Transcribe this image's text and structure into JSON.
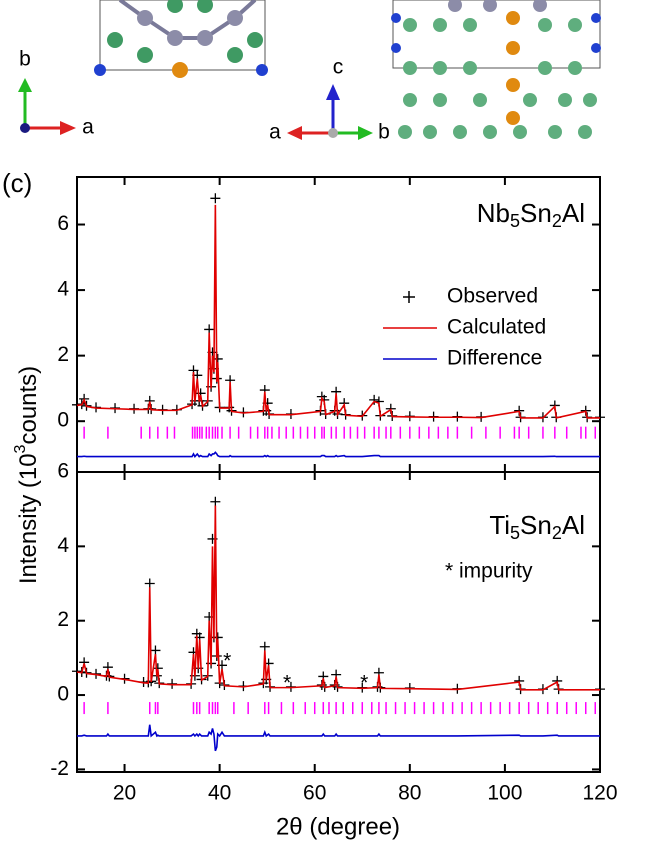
{
  "figure": {
    "panel_label": "(c)",
    "xlabel": "2θ (degree)",
    "ylabel_prefix": "Intensity (10",
    "ylabel_sup": "3",
    "ylabel_suffix": "counts)",
    "axes_left": [
      "b",
      "a"
    ],
    "axes_middle": [
      "c",
      "a",
      "b"
    ]
  },
  "chart_data": [
    {
      "type": "line",
      "xlim": [
        10,
        120
      ],
      "ylim": [
        -1.55,
        7.45
      ],
      "yticks": [
        0,
        2,
        4,
        6
      ],
      "label": [
        "Nb",
        "5",
        "Sn",
        "2",
        "Al"
      ],
      "legend": "right",
      "x": [
        10,
        11,
        11.5,
        12,
        14,
        18,
        22,
        25,
        25.3,
        25.6,
        28,
        31,
        34.2,
        34.5,
        34.8,
        35.3,
        35.7,
        36,
        36.4,
        37.5,
        37.8,
        38.2,
        38.5,
        38.8,
        39.1,
        39.4,
        39.6,
        40,
        42,
        42.2,
        42.5,
        45,
        49.2,
        49.5,
        49.8,
        50.1,
        50.4,
        55,
        61.2,
        61.5,
        62,
        62.3,
        64.2,
        64.5,
        64.8,
        66.2,
        66.5,
        70,
        72.5,
        73.5,
        73.8,
        76,
        76.3,
        80,
        85,
        90,
        95,
        103,
        103.3,
        108,
        110.5,
        110.8,
        117,
        117.3,
        120
      ],
      "series": [
        {
          "name": "Observed",
          "color": "#000000",
          "marker": "+",
          "values": [
            0.5,
            0.52,
            0.68,
            0.47,
            0.42,
            0.4,
            0.38,
            0.38,
            0.62,
            0.37,
            0.35,
            0.35,
            0.52,
            1.55,
            0.62,
            1.4,
            0.62,
            0.85,
            0.47,
            0.62,
            2.8,
            1.05,
            2.1,
            1.6,
            6.8,
            1.3,
            1.9,
            0.42,
            0.42,
            1.25,
            0.32,
            0.27,
            0.32,
            0.95,
            0.32,
            0.55,
            0.22,
            0.22,
            0.32,
            0.75,
            0.65,
            0.22,
            0.32,
            0.9,
            0.22,
            0.55,
            0.2,
            0.17,
            0.65,
            0.6,
            0.17,
            0.38,
            0.16,
            0.15,
            0.14,
            0.14,
            0.13,
            0.32,
            0.12,
            0.12,
            0.48,
            0.12,
            0.32,
            0.12,
            0.12
          ]
        },
        {
          "name": "Calculated",
          "color": "#e00000",
          "marker": "line",
          "values": [
            0.48,
            0.5,
            0.65,
            0.45,
            0.4,
            0.38,
            0.36,
            0.36,
            0.6,
            0.35,
            0.33,
            0.33,
            0.5,
            1.5,
            0.6,
            1.3,
            0.6,
            0.8,
            0.45,
            0.6,
            2.7,
            1.0,
            2.0,
            1.5,
            6.6,
            1.2,
            1.8,
            0.4,
            0.4,
            1.2,
            0.3,
            0.25,
            0.3,
            0.9,
            0.3,
            0.5,
            0.2,
            0.2,
            0.3,
            0.7,
            0.6,
            0.2,
            0.3,
            0.85,
            0.2,
            0.5,
            0.18,
            0.15,
            0.6,
            0.55,
            0.15,
            0.35,
            0.14,
            0.13,
            0.12,
            0.12,
            0.11,
            0.3,
            0.1,
            0.1,
            0.45,
            0.1,
            0.3,
            0.1,
            0.1
          ]
        },
        {
          "name": "Difference",
          "color": "#0000cc",
          "marker": "line",
          "values": [
            -1.08,
            -1.08,
            -1.07,
            -1.08,
            -1.08,
            -1.08,
            -1.08,
            -1.08,
            -1.08,
            -1.08,
            -1.08,
            -1.08,
            -1.08,
            -1.0,
            -1.08,
            -1.0,
            -1.08,
            -1.05,
            -1.08,
            -1.08,
            -1.0,
            -1.05,
            -1.0,
            -1.0,
            -0.95,
            -1.0,
            -1.05,
            -1.08,
            -1.08,
            -1.05,
            -1.08,
            -1.08,
            -1.08,
            -1.05,
            -1.08,
            -1.05,
            -1.08,
            -1.08,
            -1.08,
            -1.05,
            -1.05,
            -1.08,
            -1.08,
            -1.05,
            -1.08,
            -1.05,
            -1.08,
            -1.08,
            -1.05,
            -1.05,
            -1.08,
            -1.08,
            -1.08,
            -1.08,
            -1.08,
            -1.08,
            -1.08,
            -1.08,
            -1.08,
            -1.08,
            -1.07,
            -1.08,
            -1.08,
            -1.08,
            -1.08
          ]
        }
      ],
      "bragg": [
        11.5,
        16.5,
        23.5,
        25.3,
        27,
        29,
        30.5,
        34.3,
        34.8,
        35.3,
        35.8,
        36.3,
        37.2,
        37.8,
        38.5,
        39.1,
        39.6,
        40.5,
        42.2,
        44,
        46.5,
        48,
        49.5,
        50.1,
        51,
        52.5,
        54,
        55.5,
        57,
        58.5,
        60,
        61.5,
        62,
        63.5,
        64.5,
        66.2,
        67.5,
        69,
        70.5,
        72.5,
        73.5,
        75,
        76,
        78,
        80,
        82,
        84,
        86,
        88,
        90,
        93,
        96,
        99,
        102,
        103,
        105,
        108,
        110.5,
        113,
        116,
        117,
        119
      ],
      "bragg_color": "#ff00ff"
    },
    {
      "type": "line",
      "xlim": [
        10,
        120
      ],
      "ylim": [
        -2.07,
        6
      ],
      "yticks": [
        -2,
        0,
        2,
        4,
        6
      ],
      "xticks": [
        20,
        40,
        60,
        80,
        100,
        120
      ],
      "label": [
        "Ti",
        "5",
        "Sn",
        "2",
        "Al"
      ],
      "annotation": "* impurity",
      "impurity": {
        "symbol": "*",
        "x": [
          41.6,
          54.2,
          70.4
        ],
        "y": [
          1.0,
          0.4,
          0.4
        ]
      },
      "x": [
        10,
        11,
        11.5,
        12,
        14,
        16.2,
        16.5,
        16.8,
        20,
        24,
        25,
        25.3,
        25.6,
        26.5,
        26.8,
        27,
        27.3,
        30,
        34,
        34.5,
        34.8,
        35.2,
        35.5,
        35.8,
        36.2,
        37.5,
        37.8,
        38.2,
        38.5,
        38.8,
        39.1,
        39.4,
        39.6,
        40,
        40.5,
        41,
        45,
        49.2,
        49.5,
        49.8,
        50.3,
        50.6,
        55,
        61.5,
        61.8,
        62.1,
        64.2,
        64.5,
        64.8,
        70,
        73.2,
        73.5,
        73.8,
        80,
        90,
        103,
        103.3,
        108,
        111,
        111.3,
        120
      ],
      "series": [
        {
          "color": "#000000",
          "marker": "+",
          "values": [
            0.64,
            0.62,
            0.88,
            0.6,
            0.57,
            0.52,
            0.75,
            0.5,
            0.44,
            0.35,
            0.34,
            3.0,
            0.37,
            1.2,
            0.52,
            0.72,
            0.32,
            0.3,
            0.3,
            1.15,
            0.52,
            1.65,
            0.72,
            1.55,
            0.42,
            0.52,
            2.1,
            0.85,
            4.2,
            1.55,
            5.2,
            1.05,
            1.55,
            0.32,
            0.8,
            0.27,
            0.24,
            0.32,
            1.3,
            0.42,
            0.85,
            0.22,
            0.22,
            0.27,
            0.5,
            0.22,
            0.27,
            0.55,
            0.22,
            0.2,
            0.22,
            0.6,
            0.2,
            0.19,
            0.17,
            0.38,
            0.16,
            0.16,
            0.38,
            0.16,
            0.16
          ]
        },
        {
          "color": "#e00000",
          "marker": "line",
          "values": [
            0.62,
            0.6,
            0.85,
            0.58,
            0.55,
            0.5,
            0.7,
            0.48,
            0.42,
            0.33,
            0.32,
            2.9,
            0.35,
            1.1,
            0.5,
            0.7,
            0.3,
            0.28,
            0.28,
            1.1,
            0.5,
            1.6,
            0.7,
            1.5,
            0.4,
            0.5,
            2.0,
            0.8,
            4.0,
            1.5,
            5.1,
            1.0,
            1.5,
            0.3,
            0.7,
            0.25,
            0.22,
            0.3,
            1.2,
            0.4,
            0.8,
            0.2,
            0.2,
            0.25,
            0.45,
            0.2,
            0.25,
            0.5,
            0.2,
            0.18,
            0.2,
            0.55,
            0.18,
            0.17,
            0.15,
            0.35,
            0.14,
            0.14,
            0.35,
            0.14,
            0.14
          ]
        },
        {
          "color": "#0000cc",
          "marker": "line",
          "values": [
            -1.1,
            -1.1,
            -1.08,
            -1.1,
            -1.1,
            -1.1,
            -1.05,
            -1.1,
            -1.1,
            -1.1,
            -1.1,
            -0.8,
            -1.1,
            -1.0,
            -1.1,
            -1.08,
            -1.1,
            -1.1,
            -1.1,
            -1.05,
            -1.1,
            -1.05,
            -1.1,
            -1.05,
            -1.1,
            -1.1,
            -1.0,
            -1.05,
            -0.9,
            -1.05,
            -1.5,
            -1.4,
            -1.05,
            -1.1,
            -1.0,
            -1.1,
            -1.1,
            -1.1,
            -1.0,
            -1.1,
            -1.05,
            -1.1,
            -1.1,
            -1.1,
            -1.05,
            -1.1,
            -1.1,
            -1.05,
            -1.1,
            -1.1,
            -1.1,
            -1.05,
            -1.1,
            -1.1,
            -1.1,
            -1.08,
            -1.1,
            -1.1,
            -1.08,
            -1.1,
            -1.1
          ]
        }
      ],
      "bragg": [
        11.5,
        16.5,
        25.3,
        26.5,
        27,
        34.5,
        35.2,
        35.8,
        37.8,
        38.5,
        39.1,
        39.6,
        43,
        46,
        49.5,
        50.3,
        53,
        55.5,
        58,
        60,
        61.8,
        63,
        64.5,
        66,
        68,
        70,
        72,
        73.5,
        75,
        77,
        79,
        81,
        83,
        85,
        87,
        89,
        91,
        93,
        95,
        97,
        99,
        101,
        103,
        105,
        107,
        109,
        111,
        113,
        115,
        117,
        119
      ],
      "bragg_color": "#ff00ff"
    }
  ]
}
